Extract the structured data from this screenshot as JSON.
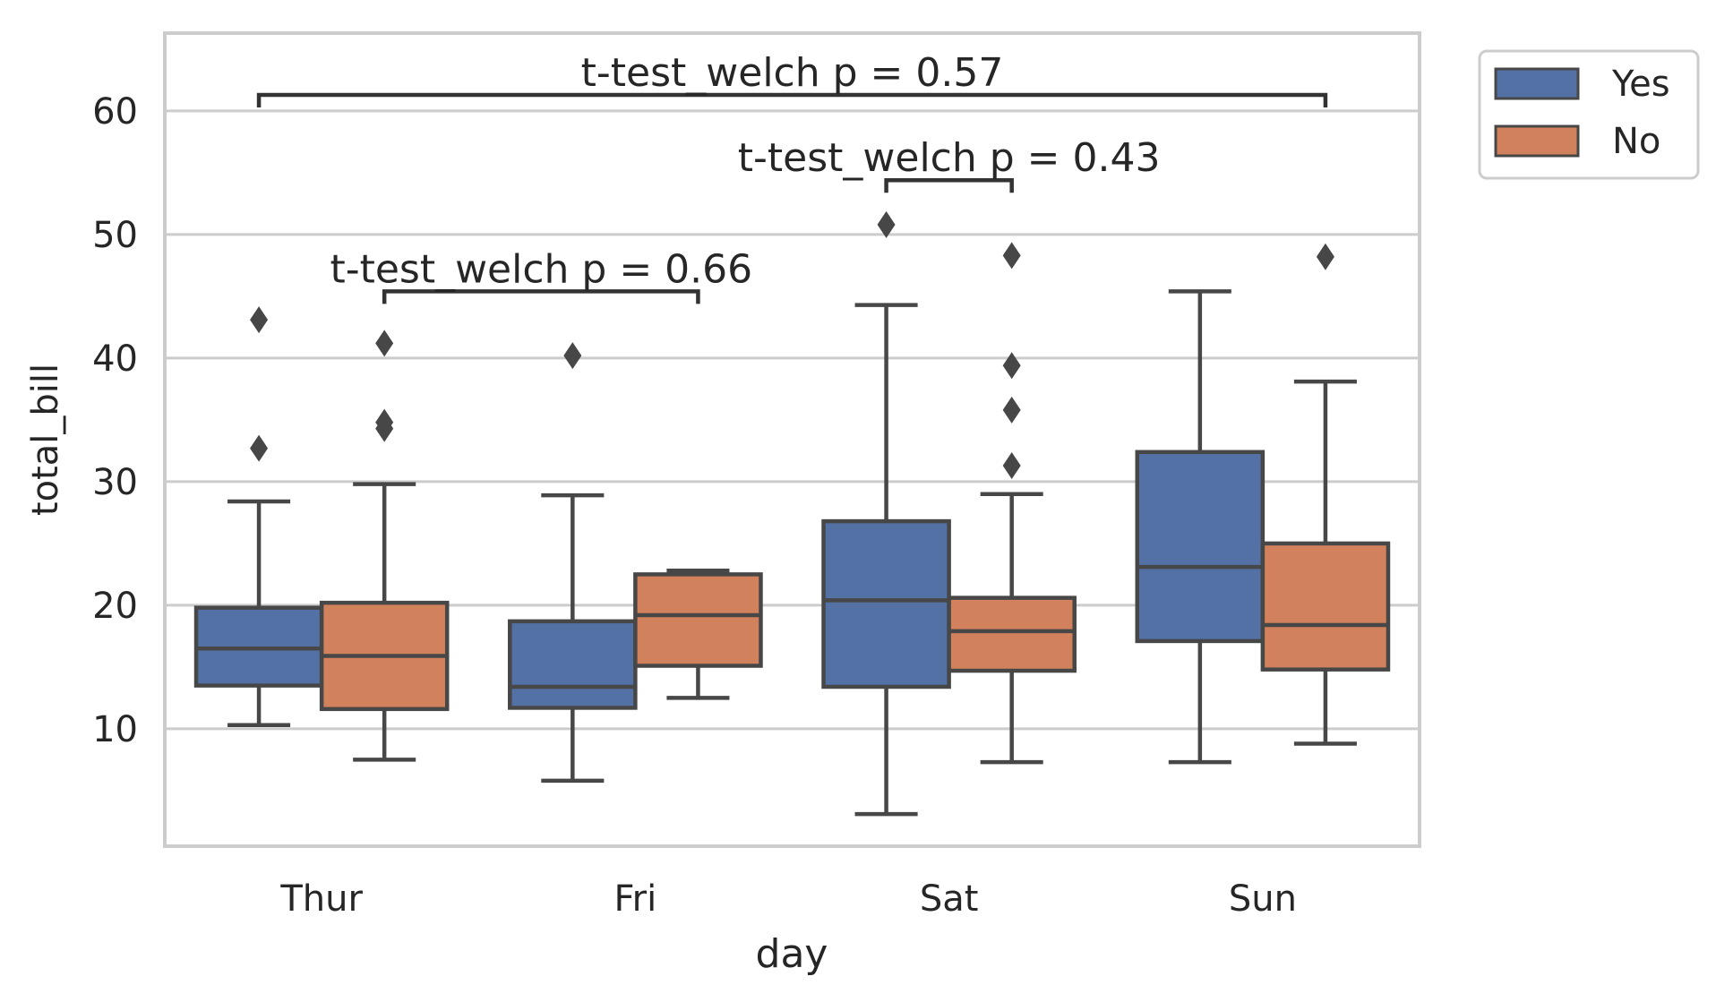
{
  "chart_data": {
    "type": "box",
    "title": "",
    "xlabel": "day",
    "ylabel": "total_bill",
    "categories": [
      "Thur",
      "Fri",
      "Sat",
      "Sun"
    ],
    "ylim": [
      0.5,
      66.3
    ],
    "yticks": [
      10,
      20,
      30,
      40,
      50,
      60
    ],
    "grid": "horizontal",
    "legend_placement": "upper-right-outside",
    "colors": {
      "Yes": "#5471a6",
      "No": "#d1825c",
      "edge": "#474747",
      "grid": "#cccccc"
    },
    "series": [
      {
        "name": "Yes",
        "boxes": [
          {
            "category": "Thur",
            "whisker_low": 10.3,
            "q1": 13.5,
            "median": 16.5,
            "q3": 19.8,
            "whisker_high": 28.4,
            "fliers": [
              32.7,
              43.1
            ]
          },
          {
            "category": "Fri",
            "whisker_low": 5.8,
            "q1": 11.7,
            "median": 13.4,
            "q3": 18.7,
            "whisker_high": 28.9,
            "fliers": [
              40.2
            ]
          },
          {
            "category": "Sat",
            "whisker_low": 3.1,
            "q1": 13.4,
            "median": 20.4,
            "q3": 26.8,
            "whisker_high": 44.3,
            "fliers": [
              50.8
            ]
          },
          {
            "category": "Sun",
            "whisker_low": 7.3,
            "q1": 17.1,
            "median": 23.1,
            "q3": 32.4,
            "whisker_high": 45.4,
            "fliers": []
          }
        ]
      },
      {
        "name": "No",
        "boxes": [
          {
            "category": "Thur",
            "whisker_low": 7.5,
            "q1": 11.6,
            "median": 15.9,
            "q3": 20.2,
            "whisker_high": 29.8,
            "fliers": [
              34.3,
              34.8,
              41.2
            ]
          },
          {
            "category": "Fri",
            "whisker_low": 12.5,
            "q1": 15.1,
            "median": 19.2,
            "q3": 22.5,
            "whisker_high": 22.8,
            "fliers": []
          },
          {
            "category": "Sat",
            "whisker_low": 7.3,
            "q1": 14.7,
            "median": 17.9,
            "q3": 20.6,
            "whisker_high": 29.0,
            "fliers": [
              31.3,
              35.8,
              39.4,
              48.3
            ]
          },
          {
            "category": "Sun",
            "whisker_low": 8.8,
            "q1": 14.8,
            "median": 18.4,
            "q3": 25.0,
            "whisker_high": 38.1,
            "fliers": [
              48.2
            ]
          }
        ]
      }
    ],
    "annotations": [
      {
        "from": {
          "category": "Thur",
          "series": "No"
        },
        "to": {
          "category": "Fri",
          "series": "No"
        },
        "y": 45.4,
        "label": "t-test_welch p = 0.66"
      },
      {
        "from": {
          "category": "Sat",
          "series": "Yes"
        },
        "to": {
          "category": "Sat",
          "series": "No"
        },
        "y": 54.4,
        "label": "t-test_welch p = 0.43"
      },
      {
        "from": {
          "category": "Thur",
          "series": "Yes"
        },
        "to": {
          "category": "Sun",
          "series": "No"
        },
        "y": 61.3,
        "label": "t-test_welch p = 0.57"
      }
    ]
  }
}
